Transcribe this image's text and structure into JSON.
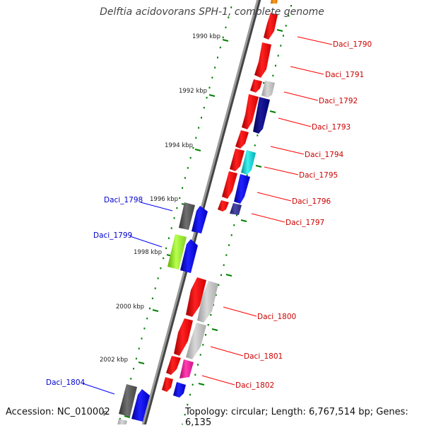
{
  "title": "Delftia acidovorans SPH-1, complete genome",
  "footer": {
    "accession": "Accession: NC_010002",
    "topology": "Topology: circular; Length: 6,767,514 bp; Genes: 6,135"
  },
  "ticks": [
    "1990 kbp",
    "1992 kbp",
    "1994 kbp",
    "1996 kbp",
    "1998 kbp",
    "2000 kbp",
    "2002 kbp"
  ],
  "partial_tick_label": "p",
  "genes": [
    {
      "name": "Daci_1790",
      "strand": "+",
      "color": "#ff0000",
      "label_color": "#cc0000"
    },
    {
      "name": "Daci_1791",
      "strand": "+",
      "color": "#ff0000",
      "label_color": "#cc0000"
    },
    {
      "name": "Daci_1792",
      "strand": "+",
      "color": "#c0c0c0",
      "label_color": "#cc0000"
    },
    {
      "name": "Daci_1793",
      "strand": "+",
      "color": "#000080",
      "label_color": "#cc0000"
    },
    {
      "name": "Daci_1794",
      "strand": "+",
      "color": "#ff0000",
      "label_color": "#cc0000"
    },
    {
      "name": "Daci_1795",
      "strand": "+",
      "color": "#00c8c8",
      "label_color": "#cc0000"
    },
    {
      "name": "Daci_1796",
      "strand": "+",
      "color": "#0000ff",
      "label_color": "#cc0000"
    },
    {
      "name": "Daci_1797",
      "strand": "+",
      "color": "#333388",
      "label_color": "#cc0000"
    },
    {
      "name": "Daci_1798",
      "strand": "-",
      "color": "#555555",
      "label_color": "#0000cc"
    },
    {
      "name": "Daci_1799",
      "strand": "-",
      "color": "#90ee20",
      "label_color": "#0000cc"
    },
    {
      "name": "Daci_1800",
      "strand": "+",
      "color": "#c0c0c0",
      "label_color": "#cc0000"
    },
    {
      "name": "Daci_1801",
      "strand": "+",
      "color": "#c0c0c0",
      "label_color": "#cc0000"
    },
    {
      "name": "Daci_1802",
      "strand": "+",
      "color": "#ff1493",
      "label_color": "#cc0000"
    },
    {
      "name": "Daci_1804",
      "strand": "-",
      "color": "#555555",
      "label_color": "#0000cc"
    }
  ],
  "colors": {
    "backbone": "#888888",
    "tick": "#008000",
    "dots": "#008000"
  }
}
